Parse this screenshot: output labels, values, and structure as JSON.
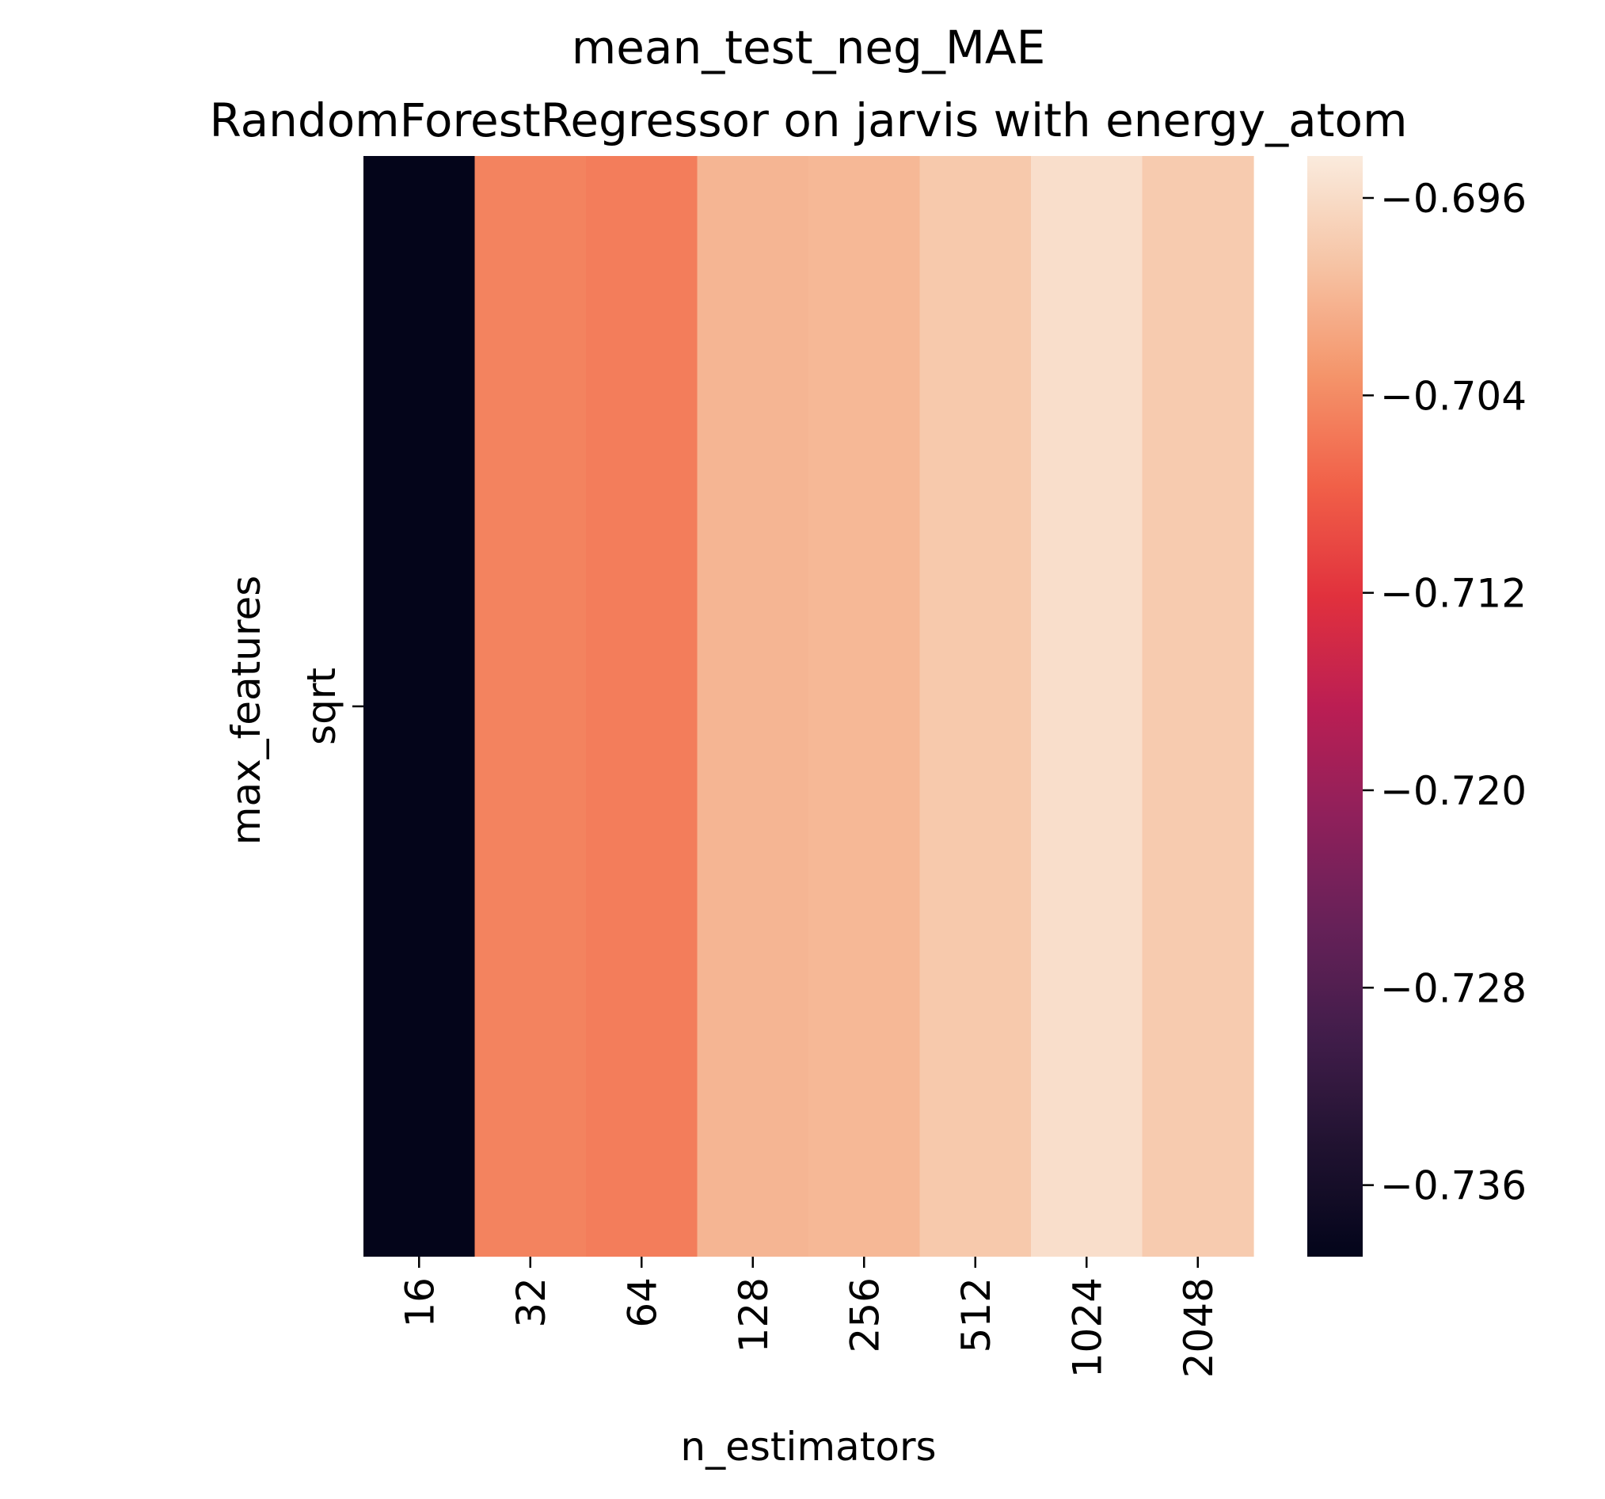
{
  "chart_data": {
    "type": "heatmap",
    "title": [
      "mean_test_neg_MAE",
      "RandomForestRegressor on jarvis with energy_atom"
    ],
    "xlabel": "n_estimators",
    "ylabel": "max_features",
    "x_categories": [
      "16",
      "32",
      "64",
      "128",
      "256",
      "512",
      "1024",
      "2048"
    ],
    "y_categories": [
      "sqrt"
    ],
    "values": [
      [
        -0.7388,
        -0.7047,
        -0.7052,
        -0.7001,
        -0.6998,
        -0.6981,
        -0.6957,
        -0.6979
      ]
    ],
    "colormap": "rocket",
    "colorbar": {
      "vmin": -0.7389,
      "vmax": -0.6943,
      "ticks": [
        -0.696,
        -0.704,
        -0.712,
        -0.72,
        -0.728,
        -0.736
      ],
      "tick_labels": [
        "−0.696",
        "−0.704",
        "−0.712",
        "−0.720",
        "−0.728",
        "−0.736"
      ]
    }
  }
}
